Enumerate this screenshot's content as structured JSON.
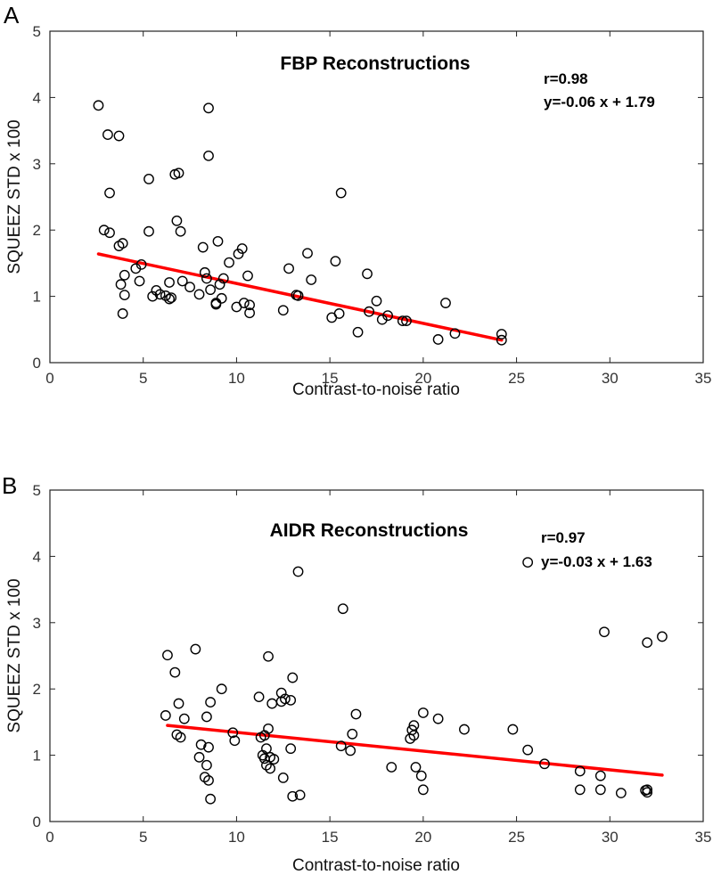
{
  "colors": {
    "fit_line": "#ff0000",
    "points": "#000000"
  },
  "chart_data": [
    {
      "type": "scatter",
      "panel_label": "A",
      "title": "FBP Reconstructions",
      "xlabel": "Contrast-to-noise ratio",
      "ylabel": "SQUEEZ STD x 100",
      "xlim": [
        0,
        35
      ],
      "ylim": [
        0,
        5
      ],
      "xticks": [
        0,
        5,
        10,
        15,
        20,
        25,
        30,
        35
      ],
      "yticks": [
        0,
        1,
        2,
        3,
        4,
        5
      ],
      "annotations": [
        "r=0.98",
        "y=-0.06 x + 1.79"
      ],
      "fit": {
        "x": [
          2.6,
          24.2
        ],
        "y": [
          1.64,
          0.34
        ]
      },
      "points": {
        "x": [
          2.6,
          3.1,
          3.7,
          3.2,
          2.9,
          3.2,
          3.7,
          3.9,
          4.0,
          3.8,
          4.0,
          3.9,
          4.6,
          4.8,
          4.9,
          5.3,
          5.3,
          5.5,
          5.7,
          5.9,
          6.2,
          6.4,
          6.4,
          6.5,
          6.7,
          6.8,
          6.9,
          7.0,
          7.1,
          7.5,
          8.0,
          8.2,
          8.3,
          8.4,
          8.5,
          8.5,
          8.6,
          8.9,
          9.0,
          9.1,
          9.2,
          9.3,
          8.9,
          9.6,
          10.0,
          10.1,
          10.3,
          10.4,
          10.6,
          10.7,
          10.7,
          12.5,
          12.8,
          13.2,
          13.3,
          13.8,
          14.0,
          15.1,
          15.3,
          15.5,
          15.6,
          16.5,
          17.0,
          17.1,
          17.5,
          17.8,
          18.1,
          18.9,
          19.1,
          20.8,
          21.2,
          21.7,
          24.2,
          24.2
        ],
        "y": [
          3.88,
          3.44,
          3.42,
          2.56,
          2.0,
          1.96,
          1.76,
          1.8,
          1.32,
          1.18,
          1.02,
          0.74,
          1.42,
          1.23,
          1.48,
          2.77,
          1.98,
          1.0,
          1.09,
          1.03,
          1.01,
          1.21,
          0.96,
          0.98,
          2.84,
          2.14,
          2.86,
          1.98,
          1.23,
          1.14,
          1.03,
          1.74,
          1.36,
          1.27,
          3.84,
          3.12,
          1.1,
          0.9,
          1.83,
          1.18,
          0.97,
          1.27,
          0.88,
          1.51,
          0.84,
          1.64,
          1.72,
          0.9,
          1.31,
          0.87,
          0.75,
          0.79,
          1.42,
          1.02,
          1.01,
          1.65,
          1.25,
          0.68,
          1.53,
          0.74,
          2.56,
          0.46,
          1.34,
          0.77,
          0.93,
          0.65,
          0.71,
          0.63,
          0.63,
          0.35,
          0.9,
          0.44,
          0.43,
          0.34
        ]
      }
    },
    {
      "type": "scatter",
      "panel_label": "B",
      "title": "AIDR Reconstructions",
      "xlabel": "Contrast-to-noise ratio",
      "ylabel": "SQUEEZ STD x 100",
      "xlim": [
        0,
        35
      ],
      "ylim": [
        0,
        5
      ],
      "xticks": [
        0,
        5,
        10,
        15,
        20,
        25,
        30,
        35
      ],
      "yticks": [
        0,
        1,
        2,
        3,
        4,
        5
      ],
      "annotations": [
        "r=0.97",
        "y=-0.03 x + 1.63"
      ],
      "fit": {
        "x": [
          6.3,
          32.8
        ],
        "y": [
          1.45,
          0.7
        ]
      },
      "points": {
        "x": [
          6.2,
          6.3,
          6.7,
          6.8,
          6.9,
          7.0,
          7.2,
          7.8,
          8.0,
          8.1,
          8.3,
          8.4,
          8.4,
          8.5,
          8.5,
          8.6,
          8.6,
          9.2,
          9.8,
          9.9,
          11.2,
          11.3,
          11.4,
          11.5,
          11.5,
          11.6,
          11.6,
          11.7,
          11.7,
          11.8,
          11.8,
          11.9,
          12.0,
          12.4,
          12.4,
          12.5,
          12.6,
          12.9,
          12.9,
          13.0,
          13.0,
          13.3,
          13.4,
          15.6,
          15.7,
          16.1,
          16.2,
          16.4,
          18.3,
          19.3,
          19.4,
          19.5,
          19.5,
          19.6,
          19.9,
          20.0,
          20.0,
          20.8,
          22.2,
          24.8,
          25.6,
          25.6,
          26.5,
          28.4,
          28.4,
          29.5,
          29.5,
          29.7,
          30.6,
          31.9,
          32.0,
          32.0,
          32.0,
          32.8
        ],
        "y": [
          1.6,
          2.51,
          2.25,
          1.31,
          1.78,
          1.27,
          1.55,
          2.6,
          0.97,
          1.16,
          0.67,
          1.58,
          0.85,
          1.12,
          0.62,
          0.34,
          1.8,
          2.0,
          1.34,
          1.22,
          1.88,
          1.27,
          1.0,
          0.95,
          1.3,
          1.1,
          0.85,
          1.4,
          2.49,
          0.8,
          0.97,
          1.78,
          0.94,
          1.94,
          1.81,
          0.66,
          1.85,
          1.83,
          1.1,
          2.17,
          0.38,
          3.77,
          0.4,
          1.14,
          3.21,
          1.07,
          1.32,
          1.62,
          0.82,
          1.25,
          1.38,
          1.3,
          1.45,
          0.82,
          0.69,
          0.48,
          1.64,
          1.55,
          1.39,
          1.39,
          1.08,
          3.91,
          0.87,
          0.76,
          0.48,
          0.69,
          0.48,
          2.86,
          0.43,
          0.47,
          2.7,
          0.48,
          0.44,
          2.79
        ]
      }
    }
  ]
}
